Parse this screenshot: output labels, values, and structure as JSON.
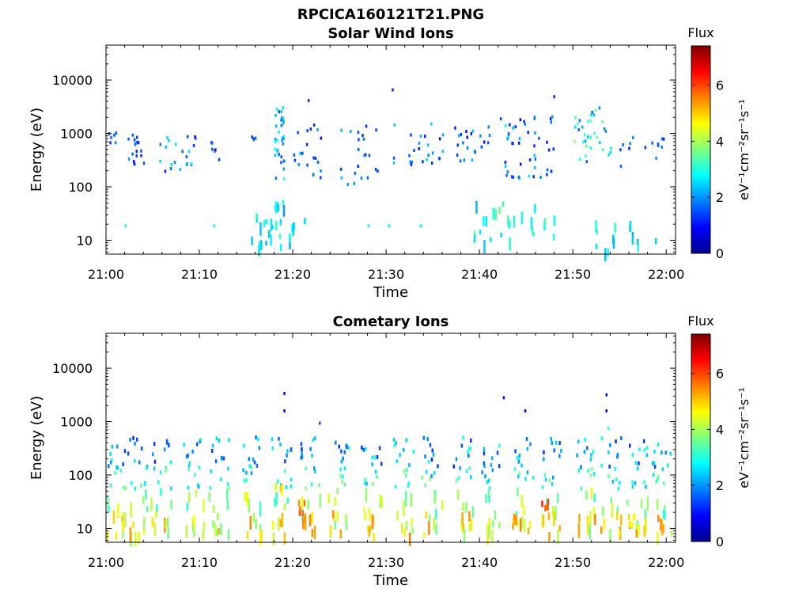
{
  "figure": {
    "title": "RPCICA160121T21.PNG",
    "background": "#ffffff"
  },
  "colorbar": {
    "label": "Flux",
    "units_text": "eV⁻¹cm⁻²sr⁻¹s⁻¹",
    "min": 0,
    "max": 7.4,
    "ticks": [
      "0",
      "2",
      "4",
      "6"
    ],
    "tick_values": [
      0,
      2,
      4,
      6
    ],
    "colormap": "jet"
  },
  "chart_data": [
    {
      "type": "heatmap",
      "title": "Solar Wind Ions",
      "xlabel": "Time",
      "ylabel": "Energy (eV)",
      "x_ticks": [
        "21:00",
        "21:10",
        "21:20",
        "21:30",
        "21:40",
        "21:50",
        "22:00"
      ],
      "x_tick_minutes": [
        0,
        10,
        20,
        30,
        40,
        50,
        60
      ],
      "xlim_minutes": [
        0,
        61
      ],
      "y_scale": "log",
      "y_ticks": [
        "10",
        "100",
        "1000",
        "10000"
      ],
      "y_tick_values": [
        10,
        100,
        1000,
        10000
      ],
      "ylim": [
        5.5,
        45000
      ],
      "description_seed": 7,
      "clusters": [
        {
          "t": [
            0,
            1
          ],
          "e": [
            700,
            1100
          ],
          "flux": [
            1.2,
            2.0
          ],
          "n": 6
        },
        {
          "t": [
            2,
            4
          ],
          "e": [
            250,
            1000
          ],
          "flux": [
            1.0,
            2.2
          ],
          "n": 18
        },
        {
          "t": [
            5.5,
            9.5
          ],
          "e": [
            200,
            1000
          ],
          "flux": [
            1.0,
            2.8
          ],
          "n": 22
        },
        {
          "t": [
            11,
            12.5
          ],
          "e": [
            250,
            1000
          ],
          "flux": [
            1.0,
            2.0
          ],
          "n": 6
        },
        {
          "t": [
            15.5,
            16
          ],
          "e": [
            800,
            1000
          ],
          "flux": [
            1.2,
            2.0
          ],
          "n": 4
        },
        {
          "t": [
            18,
            19
          ],
          "e": [
            150,
            3500
          ],
          "flux": [
            1.5,
            3.2
          ],
          "n": 34
        },
        {
          "t": [
            20,
            23
          ],
          "e": [
            150,
            1800
          ],
          "flux": [
            1.0,
            2.5
          ],
          "n": 20
        },
        {
          "t": [
            25,
            29
          ],
          "e": [
            110,
            1800
          ],
          "flux": [
            1.0,
            2.5
          ],
          "n": 22
        },
        {
          "t": [
            30,
            36
          ],
          "e": [
            250,
            1800
          ],
          "flux": [
            1.0,
            2.6
          ],
          "n": 26
        },
        {
          "t": [
            37,
            41
          ],
          "e": [
            300,
            1600
          ],
          "flux": [
            1.0,
            2.4
          ],
          "n": 22
        },
        {
          "t": [
            42,
            48
          ],
          "e": [
            150,
            2200
          ],
          "flux": [
            1.0,
            2.8
          ],
          "n": 46
        },
        {
          "t": [
            50,
            54
          ],
          "e": [
            300,
            3500
          ],
          "flux": [
            1.5,
            3.8
          ],
          "n": 34
        },
        {
          "t": [
            55,
            60
          ],
          "e": [
            250,
            900
          ],
          "flux": [
            1.0,
            2.0
          ],
          "n": 14
        },
        {
          "t": [
            18,
            19
          ],
          "e": [
            40,
            100
          ],
          "flux": [
            2.0,
            3.0
          ],
          "n": 6
        },
        {
          "t": [
            15.5,
            21.5
          ],
          "e": [
            7,
            35
          ],
          "flux": [
            2.2,
            3.2
          ],
          "n": 24
        },
        {
          "t": [
            39,
            48
          ],
          "e": [
            10,
            55
          ],
          "flux": [
            2.2,
            3.6
          ],
          "n": 26
        },
        {
          "t": [
            52,
            59.5
          ],
          "e": [
            7,
            25
          ],
          "flux": [
            2.2,
            3.2
          ],
          "n": 16
        }
      ],
      "isolated": [
        {
          "t": 30.6,
          "e": 7000,
          "flux": 1.2
        },
        {
          "t": 21.6,
          "e": 4400,
          "flux": 1.3
        },
        {
          "t": 47.9,
          "e": 5200,
          "flux": 1.2
        },
        {
          "t": 2.0,
          "e": 20,
          "flux": 2.8
        },
        {
          "t": 11.5,
          "e": 20,
          "flux": 2.8
        },
        {
          "t": 28.0,
          "e": 20,
          "flux": 2.8
        },
        {
          "t": 30.2,
          "e": 20,
          "flux": 2.8
        },
        {
          "t": 33.6,
          "e": 20,
          "flux": 2.8
        }
      ]
    },
    {
      "type": "heatmap",
      "title": "Cometary Ions",
      "xlabel": "Time",
      "ylabel": "Energy (eV)",
      "x_ticks": [
        "21:00",
        "21:10",
        "21:20",
        "21:30",
        "21:40",
        "21:50",
        "22:00"
      ],
      "x_tick_minutes": [
        0,
        10,
        20,
        30,
        40,
        50,
        60
      ],
      "xlim_minutes": [
        0,
        61
      ],
      "y_scale": "log",
      "y_ticks": [
        "10",
        "100",
        "1000",
        "10000"
      ],
      "y_tick_values": [
        10,
        100,
        1000,
        10000
      ],
      "ylim": [
        5.5,
        45000
      ],
      "description_seed": 13,
      "bursts_minutes": [
        0.5,
        2.8,
        5.4,
        8.9,
        11.6,
        15.2,
        18.3,
        21.4,
        24.4,
        27.9,
        31.3,
        34.4,
        37.8,
        40.8,
        44.3,
        47.3,
        50.8,
        53.6,
        56.4,
        59.1
      ],
      "burst_profile": [
        {
          "e": [
            150,
            550
          ],
          "flux": [
            1.2,
            3.0
          ],
          "n": 9
        },
        {
          "e": [
            60,
            150
          ],
          "flux": [
            2.0,
            3.8
          ],
          "n": 6
        },
        {
          "e": [
            20,
            60
          ],
          "flux": [
            3.0,
            4.6
          ],
          "n": 4
        },
        {
          "e": [
            8,
            22
          ],
          "flux": [
            3.5,
            5.6
          ],
          "n": 7
        }
      ],
      "hot_spots": [
        {
          "t": 21.0,
          "e": 27,
          "flux": 6.2
        },
        {
          "t": 43.5,
          "e": 15,
          "flux": 5.8
        },
        {
          "t": 47.0,
          "e": 30,
          "flux": 6.4
        },
        {
          "t": 18.5,
          "e": 60,
          "flux": 5.0
        },
        {
          "t": 27.8,
          "e": 20,
          "flux": 5.2
        },
        {
          "t": 56.3,
          "e": 15,
          "flux": 5.4
        }
      ],
      "isolated": [
        {
          "t": 19.0,
          "e": 3600,
          "flux": 1.0
        },
        {
          "t": 19.0,
          "e": 1700,
          "flux": 1.0
        },
        {
          "t": 42.5,
          "e": 3000,
          "flux": 1.0
        },
        {
          "t": 44.8,
          "e": 1700,
          "flux": 1.0
        },
        {
          "t": 53.5,
          "e": 3400,
          "flux": 1.0
        },
        {
          "t": 53.5,
          "e": 1700,
          "flux": 1.0
        },
        {
          "t": 53.7,
          "e": 800,
          "flux": 3.0
        },
        {
          "t": 22.8,
          "e": 1000,
          "flux": 1.5
        }
      ]
    }
  ]
}
